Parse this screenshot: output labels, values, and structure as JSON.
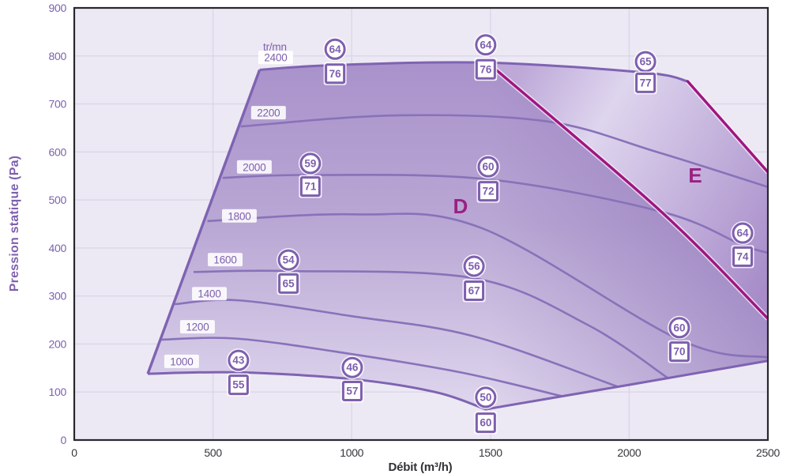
{
  "page": {
    "background": "#ffffff"
  },
  "colors": {
    "plot_bg": "#ece9f4",
    "grid": "#dcd5e9",
    "frame": "#29272e",
    "purple_text": "#7e5fad",
    "x_tick_color": "#37353b",
    "curve_stroke": "#8872b9",
    "envelope_stroke": "#7f63b2",
    "magenta": "#a01580",
    "magenta_halo": "#f6f3fa",
    "zone_label_color": "#9c1f83",
    "fill_top": "#a48bc8",
    "fill_mid": "#b9a7d4",
    "fill_bottom": "#e5def2",
    "e_fill_near": "#bda8d8",
    "e_fill_light": "#ded5ee",
    "e_fill_far": "#a78cc9",
    "overlay_dark": "#7d5fad",
    "label_box_bg": "#ffffff",
    "marker_fill": "#ffffff"
  },
  "chart_data": {
    "type": "line",
    "title": "",
    "xlabel": "Débit (m³/h)",
    "ylabel": "Pression statique (Pa)",
    "xlim": [
      0,
      2500
    ],
    "ylim": [
      0,
      900
    ],
    "x_ticks": [
      0,
      500,
      1000,
      1500,
      2000,
      2500
    ],
    "y_ticks": [
      0,
      100,
      200,
      300,
      400,
      500,
      600,
      700,
      800,
      900
    ],
    "grid": true,
    "rpm_header": {
      "text": "tr/mn",
      "x": 723,
      "pa": 819
    },
    "series": [
      {
        "rpm": "1000",
        "label_x": 387,
        "label_pa": 163,
        "points": [
          [
            265,
            138
          ],
          [
            590,
            141
          ],
          [
            1000,
            127
          ],
          [
            1300,
            100
          ],
          [
            1483,
            64
          ]
        ]
      },
      {
        "rpm": "1200",
        "label_x": 444,
        "label_pa": 235,
        "points": [
          [
            311,
            209
          ],
          [
            590,
            211
          ],
          [
            1000,
            179
          ],
          [
            1400,
            140
          ],
          [
            1760,
            91
          ]
        ]
      },
      {
        "rpm": "1400",
        "label_x": 487,
        "label_pa": 304,
        "points": [
          [
            362,
            283
          ],
          [
            590,
            291
          ],
          [
            1000,
            258
          ],
          [
            1440,
            216
          ],
          [
            1960,
            111
          ]
        ]
      },
      {
        "rpm": "1600",
        "label_x": 544,
        "label_pa": 375,
        "points": [
          [
            430,
            350
          ],
          [
            772,
            352
          ],
          [
            1441,
            337
          ],
          [
            1850,
            240
          ],
          [
            2140,
            129
          ]
        ]
      },
      {
        "rpm": "1800",
        "label_x": 595,
        "label_pa": 466,
        "points": [
          [
            480,
            456
          ],
          [
            1010,
            470
          ],
          [
            1470,
            441
          ],
          [
            2181,
            209
          ],
          [
            2500,
            172
          ]
        ]
      },
      {
        "rpm": "2000",
        "label_x": 649,
        "label_pa": 568,
        "points": [
          [
            535,
            546
          ],
          [
            851,
            552
          ],
          [
            1492,
            543
          ],
          [
            2120,
            475
          ],
          [
            2409,
            406
          ],
          [
            2500,
            390
          ]
        ]
      },
      {
        "rpm": "2200",
        "label_x": 700,
        "label_pa": 681,
        "points": [
          [
            600,
            653
          ],
          [
            1150,
            676
          ],
          [
            1700,
            664
          ],
          [
            2100,
            600
          ],
          [
            2500,
            527
          ]
        ]
      },
      {
        "rpm": "2400",
        "label_x": 726,
        "label_pa": 796,
        "points": [
          [
            668,
            771
          ],
          [
            940,
            781
          ],
          [
            1490,
            786
          ],
          [
            2060,
            765
          ],
          [
            2211,
            747
          ]
        ]
      }
    ],
    "envelope": {
      "left_boundary": [
        [
          265,
          138
        ],
        [
          668,
          771
        ]
      ],
      "max_flow_boundary": [
        [
          1483,
          64
        ],
        [
          2000,
          115
        ],
        [
          2500,
          165
        ]
      ],
      "right_edge_pa": [
        165,
        558
      ]
    },
    "zone_boundaries": {
      "d_e": {
        "points": [
          [
            1490,
            786
          ],
          [
            2115,
            476
          ],
          [
            2500,
            253
          ]
        ]
      },
      "e_right": {
        "points": [
          [
            2211,
            747
          ],
          [
            2500,
            558
          ]
        ]
      }
    },
    "zones": [
      {
        "label": "D",
        "x": 1392,
        "pa": 487
      },
      {
        "label": "E",
        "x": 2238,
        "pa": 551
      }
    ],
    "markers": [
      {
        "x": 940,
        "circle": "64",
        "circle_pa": 814,
        "square": "76",
        "square_pa": 763
      },
      {
        "x": 1483,
        "circle": "64",
        "circle_pa": 823,
        "square": "76",
        "square_pa": 772
      },
      {
        "x": 2059,
        "circle": "65",
        "circle_pa": 788,
        "square": "77",
        "square_pa": 744
      },
      {
        "x": 851,
        "circle": "59",
        "circle_pa": 576,
        "square": "71",
        "square_pa": 528
      },
      {
        "x": 1492,
        "circle": "60",
        "circle_pa": 569,
        "square": "72",
        "square_pa": 518
      },
      {
        "x": 2409,
        "circle": "64",
        "circle_pa": 431,
        "square": "74",
        "square_pa": 382
      },
      {
        "x": 772,
        "circle": "54",
        "circle_pa": 375,
        "square": "65",
        "square_pa": 326
      },
      {
        "x": 1441,
        "circle": "56",
        "circle_pa": 362,
        "square": "67",
        "square_pa": 311
      },
      {
        "x": 2181,
        "circle": "60",
        "circle_pa": 234,
        "square": "70",
        "square_pa": 184
      },
      {
        "x": 592,
        "circle": "43",
        "circle_pa": 166,
        "square": "55",
        "square_pa": 115
      },
      {
        "x": 1002,
        "circle": "46",
        "circle_pa": 151,
        "square": "57",
        "square_pa": 102
      },
      {
        "x": 1483,
        "circle": "50",
        "circle_pa": 89,
        "square": "60",
        "square_pa": 36
      }
    ]
  }
}
